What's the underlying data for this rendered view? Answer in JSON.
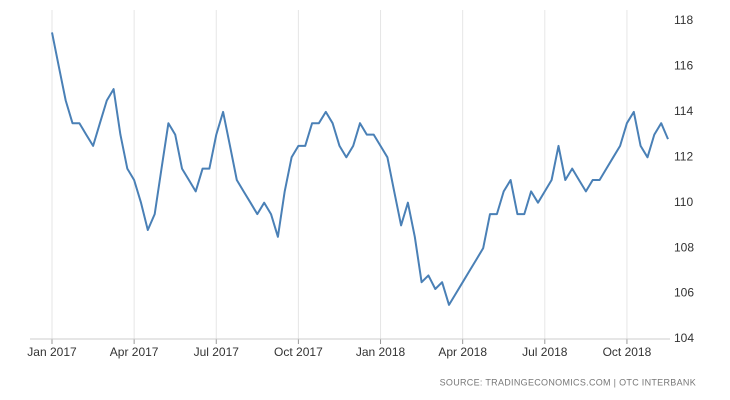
{
  "chart_data": {
    "type": "line",
    "source": "SOURCE: TRADINGECONOMICS.COM | OTC INTERBANK",
    "categories": [
      "Jan 2017",
      null,
      null,
      null,
      null,
      null,
      null,
      null,
      null,
      null,
      null,
      null,
      "Apr 2017",
      null,
      null,
      null,
      null,
      null,
      null,
      null,
      null,
      null,
      null,
      null,
      "Jul 2017",
      null,
      null,
      null,
      null,
      null,
      null,
      null,
      null,
      null,
      null,
      null,
      "Oct 2017",
      null,
      null,
      null,
      null,
      null,
      null,
      null,
      null,
      null,
      null,
      null,
      "Jan 2018",
      null,
      null,
      null,
      null,
      null,
      null,
      null,
      null,
      null,
      null,
      null,
      "Apr 2018",
      null,
      null,
      null,
      null,
      null,
      null,
      null,
      null,
      null,
      null,
      null,
      "Jul 2018",
      null,
      null,
      null,
      null,
      null,
      null,
      null,
      null,
      null,
      null,
      null,
      "Oct 2018",
      null,
      null,
      null,
      null,
      null,
      null
    ],
    "series": [
      {
        "color": "#4a80b6",
        "values": [
          117.5,
          116,
          114.5,
          113.5,
          113.5,
          113,
          112.5,
          113.5,
          114.5,
          115,
          113,
          111.5,
          111,
          110,
          108.8,
          109.5,
          111.5,
          113.5,
          113,
          111.5,
          111,
          110.5,
          111.5,
          111.5,
          113,
          114,
          112.5,
          111,
          110.5,
          110,
          109.5,
          110,
          109.5,
          108.5,
          110.5,
          112,
          112.5,
          112.5,
          113.5,
          113.5,
          114,
          113.5,
          112.5,
          112,
          112.5,
          113.5,
          113,
          113,
          112.5,
          112,
          110.5,
          109,
          110,
          108.5,
          106.5,
          106.8,
          106.2,
          106.5,
          105.5,
          106,
          106.5,
          107,
          107.5,
          108,
          109.5,
          109.5,
          110.5,
          111,
          109.5,
          109.5,
          110.5,
          110,
          110.5,
          111,
          112.5,
          111,
          111.5,
          111,
          110.5,
          111,
          111,
          111.5,
          112,
          112.5,
          113.5,
          114,
          112.5,
          112,
          113,
          113.5,
          112.8
        ]
      }
    ],
    "ylim": [
      104,
      118
    ],
    "yticks": [
      104,
      106,
      108,
      110,
      112,
      114,
      116,
      118
    ],
    "grid": true
  }
}
